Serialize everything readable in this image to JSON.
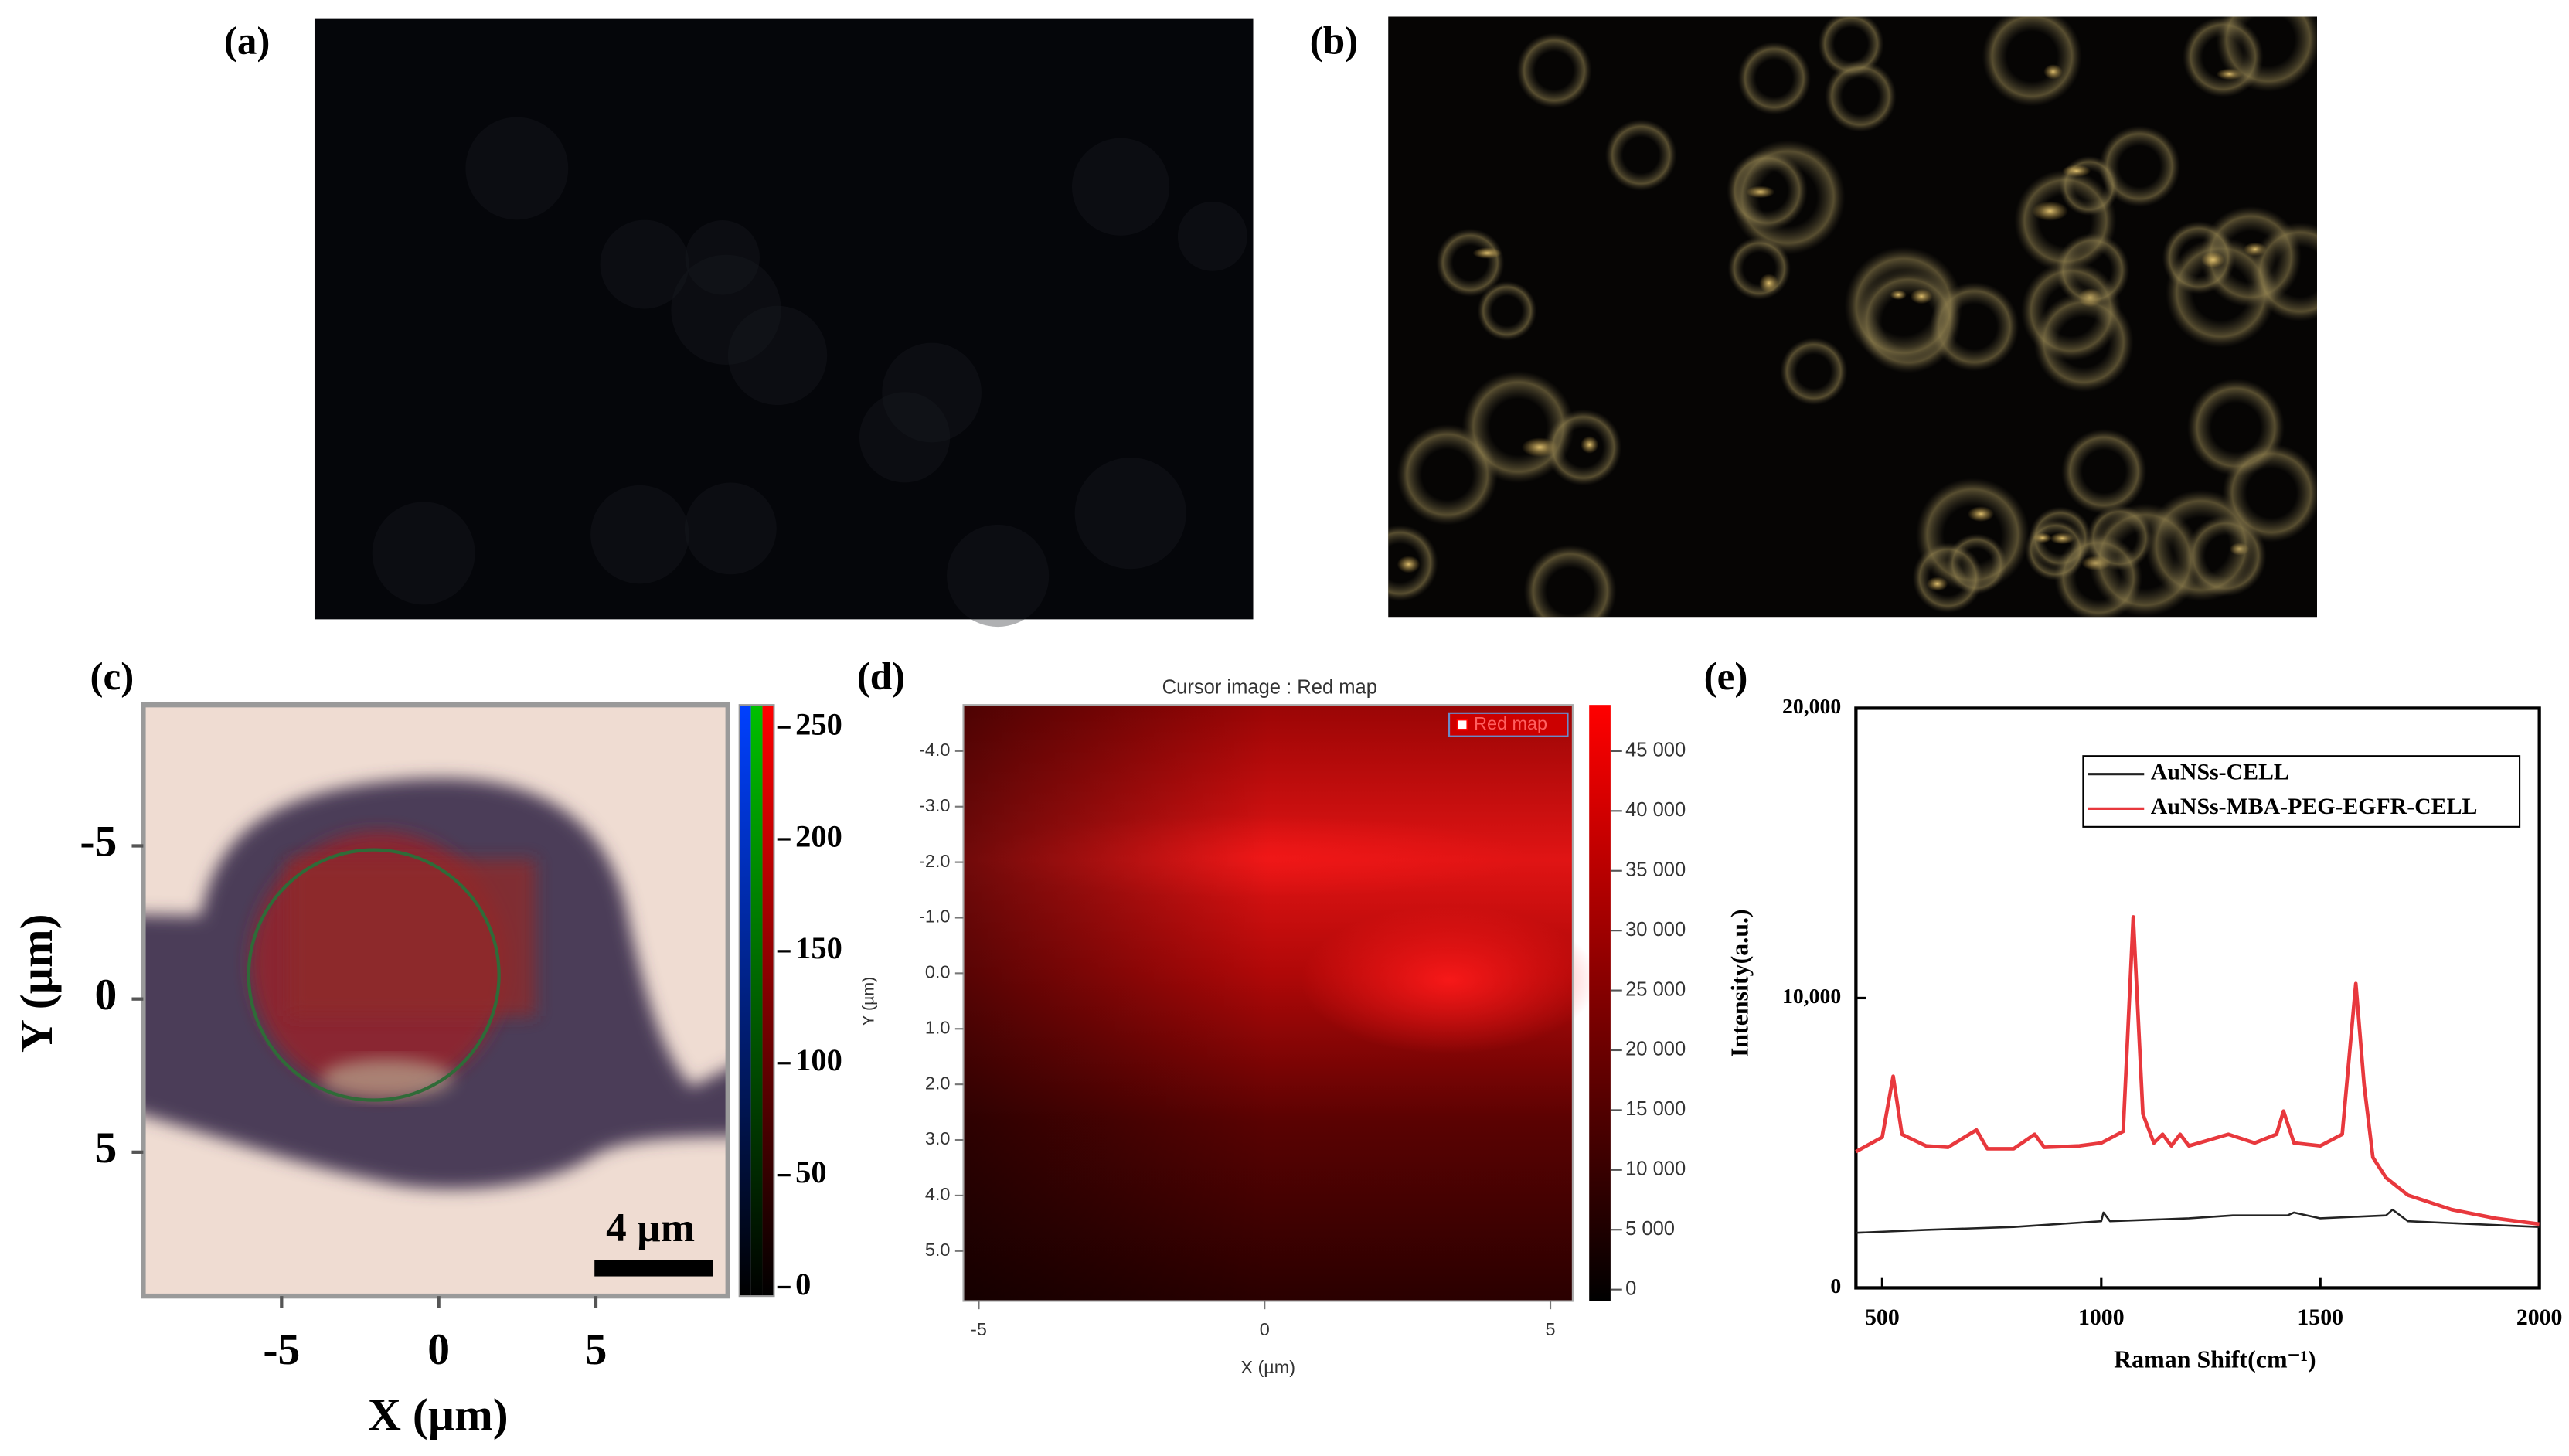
{
  "panel_labels": [
    "(a)",
    "(b)",
    "(c)",
    "(d)",
    "(e)"
  ],
  "chart_data": [
    {
      "type": "image",
      "xlabel": "X (µm)",
      "ylabel": "Y (µm)",
      "xlim": [
        -9.4,
        9.2
      ],
      "xticks": [
        -5,
        0,
        5
      ],
      "ylim": [
        -9.6,
        9.7
      ],
      "y_inverted": true,
      "yticks": [
        -5,
        0,
        5
      ],
      "colorbar": {
        "lim": [
          -4,
          260
        ],
        "ticks": [
          0,
          50,
          100,
          150,
          200,
          250
        ]
      },
      "scalebar": "4 µm"
    },
    {
      "type": "heatmap",
      "title": "Cursor image : Red map",
      "legend": "Red map",
      "color": "#ff0000",
      "xlabel": "X (µm)",
      "ylabel": "Y (µm)",
      "xlim": [
        -5.27,
        5.39
      ],
      "xticks": [
        -5,
        0,
        5
      ],
      "ylim": [
        -4.83,
        5.9
      ],
      "y_inverted": true,
      "yticks": [
        {
          "value": -4,
          "label": "-4.0"
        },
        {
          "value": -3,
          "label": "-3.0"
        },
        {
          "value": -2,
          "label": "-2.0"
        },
        {
          "value": -1,
          "label": "-1.0"
        },
        {
          "value": 0,
          "label": "0.0"
        },
        {
          "value": 1,
          "label": "1.0"
        },
        {
          "value": 2,
          "label": "2.0"
        },
        {
          "value": 3,
          "label": "3.0"
        },
        {
          "value": 4,
          "label": "4.0"
        },
        {
          "value": 5,
          "label": "5.0"
        }
      ],
      "colorbar": {
        "lim": [
          -960,
          48860
        ],
        "ticks": [
          0,
          {
            "value": 5000,
            "label": "5 000"
          },
          {
            "value": 10000,
            "label": "10 000"
          },
          {
            "value": 15000,
            "label": "15 000"
          },
          {
            "value": 20000,
            "label": "20 000"
          },
          {
            "value": 25000,
            "label": "25 000"
          },
          {
            "value": 30000,
            "label": "30 000"
          },
          {
            "value": 35000,
            "label": "35 000"
          },
          {
            "value": 40000,
            "label": "40 000"
          },
          {
            "value": 45000,
            "label": "45 000"
          }
        ]
      }
    },
    {
      "type": "line",
      "xlabel": "Raman Shift(cm⁻¹)",
      "ylabel": "Intensity(a.u.)",
      "xlim": [
        440,
        2000
      ],
      "xticks": [
        500,
        1000,
        1500,
        2000
      ],
      "ylim": [
        0,
        20000
      ],
      "yticks": [
        0,
        {
          "value": 10000,
          "label": "10,000"
        },
        {
          "value": 20000,
          "label": "20,000"
        }
      ],
      "series": [
        {
          "name": "AuNSs-CELL",
          "color": "#222222",
          "x": [
            440,
            600,
            800,
            1000,
            1005,
            1020,
            1200,
            1300,
            1425,
            1440,
            1500,
            1650,
            1665,
            1700,
            2000
          ],
          "values": [
            1900,
            2000,
            2100,
            2300,
            2600,
            2300,
            2400,
            2500,
            2500,
            2600,
            2400,
            2500,
            2700,
            2300,
            2100
          ]
        },
        {
          "name": "AuNSs-MBA-PEG-EGFR-CELL",
          "color": "#e8383d",
          "x": [
            440,
            500,
            525,
            545,
            600,
            650,
            715,
            740,
            800,
            848,
            870,
            950,
            1000,
            1050,
            1073,
            1095,
            1120,
            1140,
            1160,
            1180,
            1200,
            1290,
            1350,
            1400,
            1416,
            1440,
            1500,
            1550,
            1581,
            1600,
            1620,
            1650,
            1700,
            1800,
            1900,
            2000
          ],
          "values": [
            4700,
            5200,
            7300,
            5300,
            4900,
            4850,
            5450,
            4800,
            4800,
            5300,
            4850,
            4900,
            5000,
            5400,
            12800,
            6000,
            5000,
            5300,
            4900,
            5300,
            4900,
            5300,
            5000,
            5300,
            6100,
            5000,
            4900,
            5300,
            10500,
            7000,
            4500,
            3800,
            3200,
            2700,
            2400,
            2200
          ]
        }
      ]
    }
  ]
}
